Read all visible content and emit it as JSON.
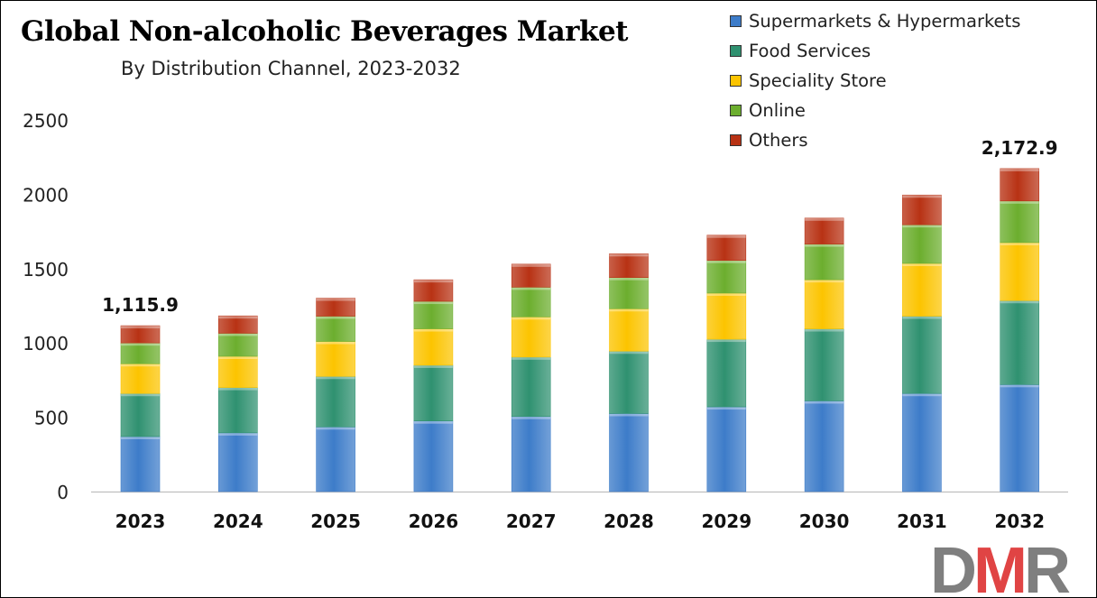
{
  "title": "Global Non-alcoholic Beverages Market",
  "subtitle": "By Distribution Channel, 2023-2032",
  "logo_text": "DMR",
  "colors": {
    "supermarkets": "#3d7cc9",
    "food_services": "#2f9170",
    "speciality": "#fcc400",
    "online": "#6cae2e",
    "others": "#b83214",
    "axis": "#bfbfbf",
    "logo_gray": "#7f7f7f",
    "logo_red": "#e04444"
  },
  "chart_data": {
    "type": "bar",
    "stacked": true,
    "categories": [
      "2023",
      "2024",
      "2025",
      "2026",
      "2027",
      "2028",
      "2029",
      "2030",
      "2031",
      "2032"
    ],
    "series": [
      {
        "name": "Supermarkets & Hypermarkets",
        "color": "#3d7cc9",
        "values": [
          370,
          395,
          435,
          475,
          505,
          525,
          570,
          610,
          660,
          720
        ]
      },
      {
        "name": "Food Services",
        "color": "#2f9170",
        "values": [
          290,
          305,
          340,
          375,
          400,
          420,
          455,
          485,
          520,
          565
        ]
      },
      {
        "name": "Speciality Store",
        "color": "#fcc400",
        "values": [
          200,
          210,
          235,
          245,
          270,
          285,
          310,
          330,
          355,
          390
        ]
      },
      {
        "name": "Online",
        "color": "#6cae2e",
        "values": [
          140,
          155,
          170,
          185,
          200,
          210,
          220,
          240,
          260,
          280
        ]
      },
      {
        "name": "Others",
        "color": "#b83214",
        "values": [
          115.9,
          117,
          121,
          145,
          155,
          160,
          170,
          175,
          200,
          217.9
        ]
      }
    ],
    "data_labels": [
      {
        "category": "2023",
        "text": "1,115.9"
      },
      {
        "category": "2032",
        "text": "2,172.9"
      }
    ],
    "ylim": [
      0,
      2500
    ],
    "yticks": [
      "0",
      "500",
      "1000",
      "1500",
      "2000",
      "2500"
    ],
    "ytick_values": [
      0,
      500,
      1000,
      1500,
      2000,
      2500
    ],
    "grid": false,
    "legend_position": "top-right"
  }
}
